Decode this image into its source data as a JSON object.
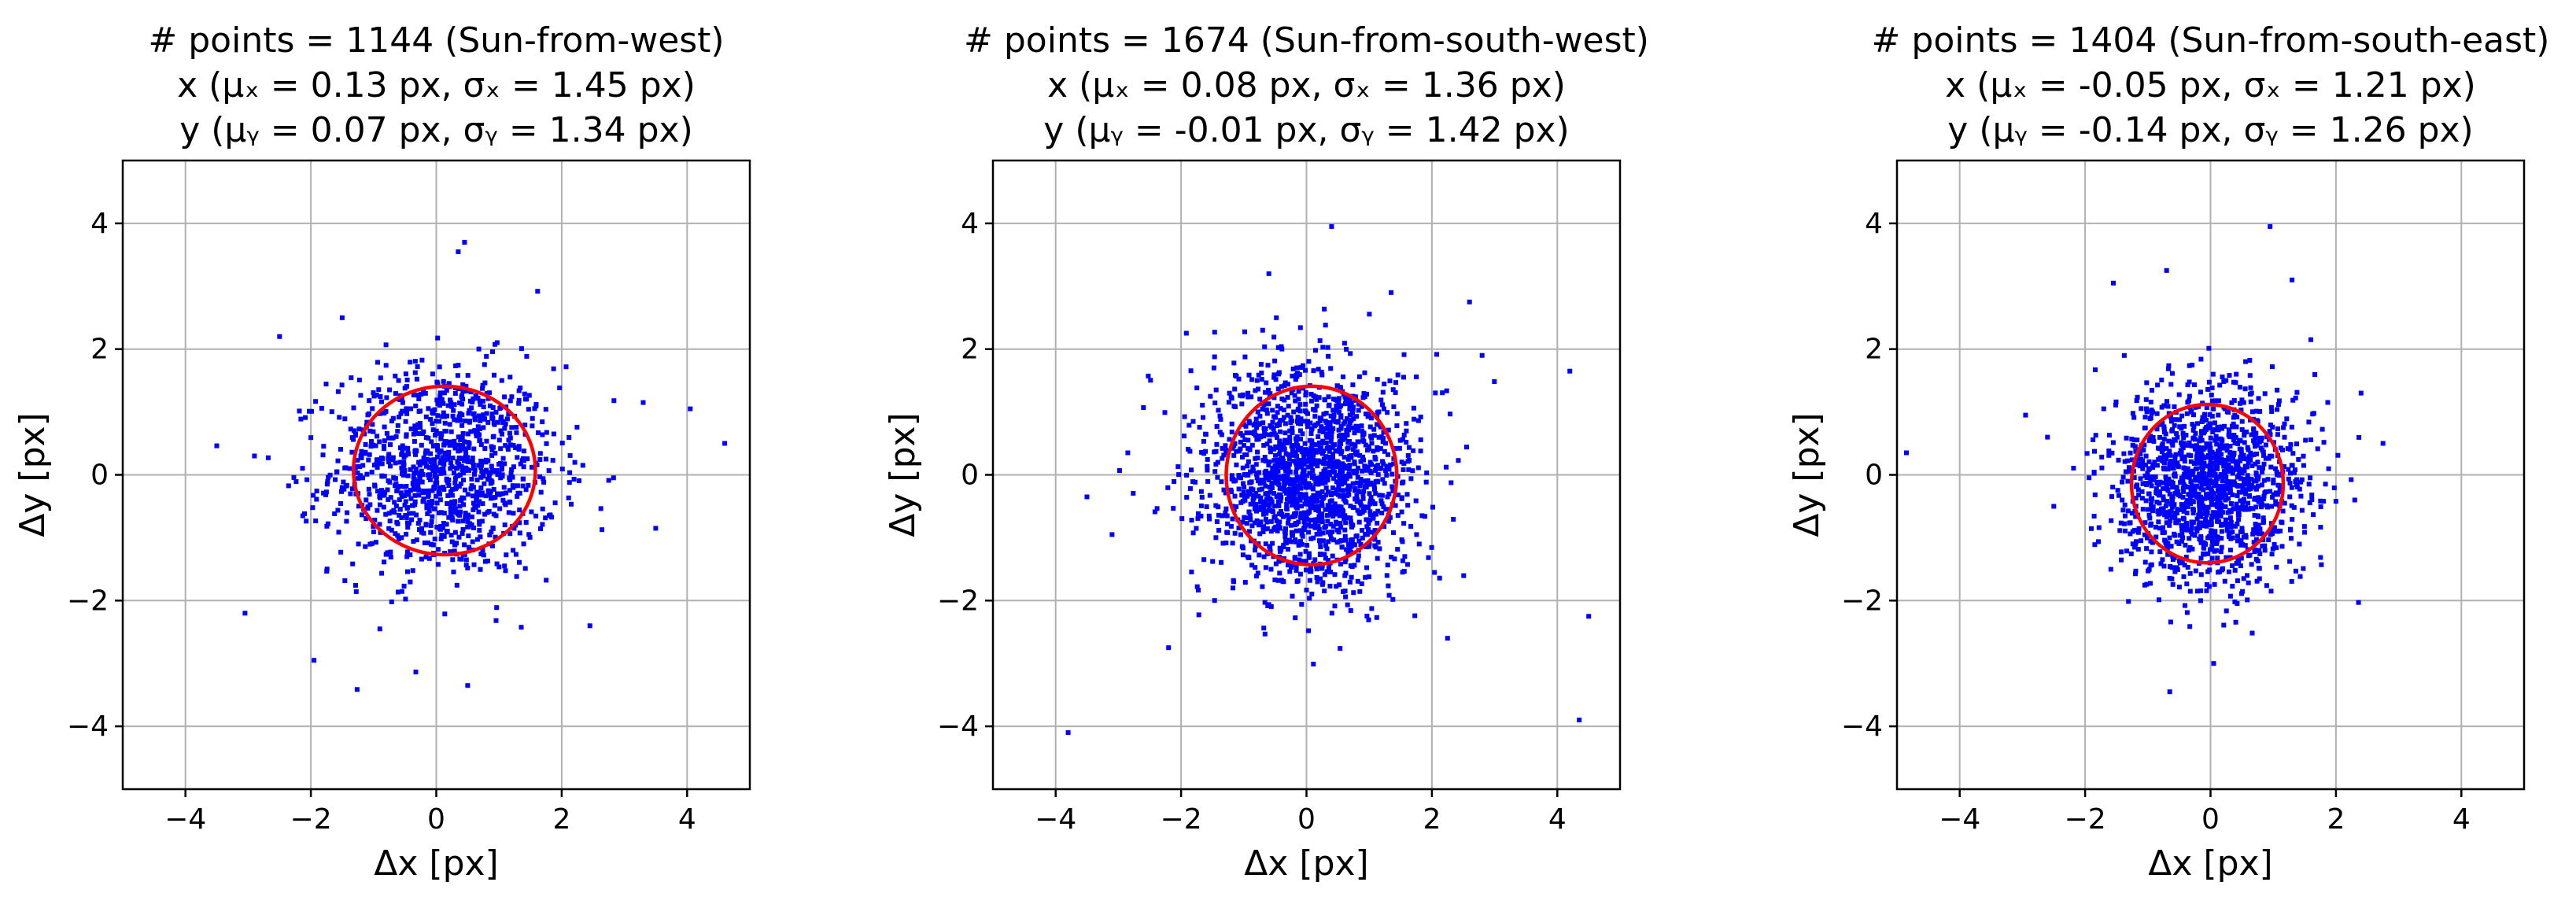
{
  "chart_data": [
    {
      "type": "scatter",
      "title": [
        "# points = 1144 (Sun-from-west)",
        "x (μₓ = 0.13 px, σₓ = 1.45 px)",
        "y (μᵧ = 0.07 px, σᵧ = 1.34 px)"
      ],
      "xlabel": "Δx [px]",
      "ylabel": "Δy [px]",
      "xlim": [
        -5,
        5
      ],
      "ylim": [
        -5,
        5
      ],
      "xticks": [
        "−4",
        "−2",
        "0",
        "2",
        "4"
      ],
      "yticks": [
        "4",
        "2",
        "0",
        "−2",
        "−4"
      ],
      "grid": true,
      "n_points": 1144,
      "mu": [
        0.13,
        0.07
      ],
      "sigma": [
        1.45,
        1.34
      ],
      "point_color": "#0000ff",
      "ellipse": {
        "cx": 0.13,
        "cy": 0.07,
        "rx": 1.45,
        "ry": 1.34,
        "color": "#ff0000"
      },
      "outliers": [
        [
          0.45,
          3.7
        ],
        [
          0.35,
          3.55
        ],
        [
          -3.05,
          -2.2
        ],
        [
          -1.95,
          -2.95
        ],
        [
          4.6,
          0.5
        ],
        [
          4.05,
          1.05
        ],
        [
          0.5,
          -3.35
        ],
        [
          -0.9,
          -2.45
        ],
        [
          -2.5,
          2.2
        ],
        [
          3.5,
          -0.85
        ],
        [
          3.3,
          1.15
        ],
        [
          -2.9,
          0.3
        ],
        [
          2.45,
          -2.4
        ],
        [
          -1.5,
          2.5
        ]
      ]
    },
    {
      "type": "scatter",
      "title": [
        "# points = 1674 (Sun-from-south-west)",
        "x (μₓ = 0.08 px, σₓ = 1.36 px)",
        "y (μᵧ = -0.01 px, σᵧ = 1.42 px)"
      ],
      "xlabel": "Δx [px]",
      "ylabel": "Δy [px]",
      "xlim": [
        -5,
        5
      ],
      "ylim": [
        -5,
        5
      ],
      "xticks": [
        "−4",
        "−2",
        "0",
        "2",
        "4"
      ],
      "yticks": [
        "4",
        "2",
        "0",
        "−2",
        "−4"
      ],
      "grid": true,
      "n_points": 1674,
      "mu": [
        0.08,
        -0.01
      ],
      "sigma": [
        1.36,
        1.42
      ],
      "point_color": "#0000ff",
      "ellipse": {
        "cx": 0.08,
        "cy": -0.01,
        "rx": 1.36,
        "ry": 1.42,
        "color": "#ff0000"
      },
      "outliers": [
        [
          -3.8,
          -4.1
        ],
        [
          4.35,
          -3.9
        ],
        [
          0.4,
          3.95
        ],
        [
          4.2,
          1.65
        ],
        [
          4.5,
          -2.25
        ],
        [
          -2.2,
          -2.75
        ],
        [
          -0.6,
          3.2
        ],
        [
          2.6,
          2.75
        ],
        [
          2.25,
          -2.6
        ],
        [
          -3.1,
          -0.95
        ],
        [
          -2.85,
          0.35
        ],
        [
          2.8,
          1.9
        ],
        [
          1.35,
          2.9
        ],
        [
          -3.5,
          -0.35
        ]
      ]
    },
    {
      "type": "scatter",
      "title": [
        "# points = 1404 (Sun-from-south-east)",
        "x (μₓ = -0.05 px, σₓ = 1.21 px)",
        "y (μᵧ = -0.14 px, σᵧ = 1.26 px)"
      ],
      "xlabel": "Δx [px]",
      "ylabel": "Δy [px]",
      "xlim": [
        -5,
        5
      ],
      "ylim": [
        -5,
        5
      ],
      "xticks": [
        "−4",
        "−2",
        "0",
        "2",
        "4"
      ],
      "yticks": [
        "4",
        "2",
        "0",
        "−2",
        "−4"
      ],
      "grid": true,
      "n_points": 1404,
      "mu": [
        -0.05,
        -0.14
      ],
      "sigma": [
        1.21,
        1.26
      ],
      "point_color": "#0000ff",
      "ellipse": {
        "cx": -0.05,
        "cy": -0.14,
        "rx": 1.21,
        "ry": 1.26,
        "color": "#ff0000"
      },
      "outliers": [
        [
          -4.85,
          0.35
        ],
        [
          0.95,
          3.95
        ],
        [
          1.3,
          3.1
        ],
        [
          -0.7,
          3.25
        ],
        [
          -1.55,
          3.05
        ],
        [
          -0.65,
          -3.45
        ],
        [
          0.05,
          -3.0
        ],
        [
          2.75,
          0.5
        ],
        [
          2.4,
          1.3
        ],
        [
          -2.6,
          0.6
        ],
        [
          -2.95,
          0.95
        ],
        [
          -2.5,
          -0.5
        ],
        [
          2.3,
          -0.4
        ],
        [
          1.6,
          2.15
        ]
      ]
    }
  ]
}
